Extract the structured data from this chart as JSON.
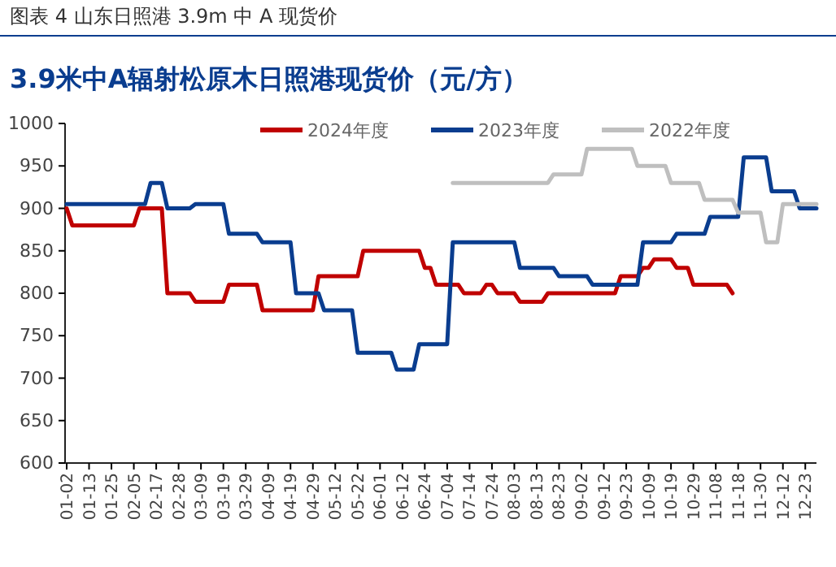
{
  "chart_data": {
    "type": "line",
    "title": "图表 4  山东日照港 3.9m 中 A 现货价",
    "subtitle": "3.9米中A辐射松原木日照港现货价（元/方）",
    "categories": [
      "01-02",
      null,
      null,
      null,
      "01-13",
      null,
      null,
      null,
      "01-25",
      null,
      null,
      null,
      "02-05",
      null,
      null,
      null,
      "02-17",
      null,
      null,
      null,
      "02-28",
      null,
      null,
      null,
      "03-09",
      null,
      null,
      null,
      "03-19",
      null,
      null,
      null,
      "03-29",
      null,
      null,
      null,
      "04-09",
      null,
      null,
      null,
      "04-19",
      null,
      null,
      null,
      "04-29",
      null,
      null,
      null,
      "05-12",
      null,
      null,
      null,
      "05-22",
      null,
      null,
      null,
      "06-01",
      null,
      null,
      null,
      "06-12",
      null,
      null,
      null,
      "06-24",
      null,
      null,
      null,
      "07-04",
      null,
      null,
      null,
      "07-14",
      null,
      null,
      null,
      "07-24",
      null,
      null,
      null,
      "08-03",
      null,
      null,
      null,
      "08-13",
      null,
      null,
      null,
      "08-23",
      null,
      null,
      null,
      "09-02",
      null,
      null,
      null,
      "09-12",
      null,
      null,
      null,
      "09-23",
      null,
      null,
      null,
      "10-09",
      null,
      null,
      null,
      "10-19",
      null,
      null,
      null,
      "10-29",
      null,
      null,
      null,
      "11-08",
      null,
      null,
      null,
      "11-18",
      null,
      null,
      null,
      "11-30",
      null,
      null,
      null,
      "12-12",
      null,
      null,
      null,
      "12-23",
      null,
      null
    ],
    "series": [
      {
        "name": "2024年度",
        "color": "#c00000",
        "values": [
          900,
          880,
          880,
          880,
          880,
          880,
          880,
          880,
          880,
          880,
          880,
          880,
          880,
          900,
          900,
          900,
          900,
          900,
          800,
          800,
          800,
          800,
          800,
          790,
          790,
          790,
          790,
          790,
          790,
          810,
          810,
          810,
          810,
          810,
          810,
          780,
          780,
          780,
          780,
          780,
          780,
          780,
          780,
          780,
          780,
          820,
          820,
          820,
          820,
          820,
          820,
          820,
          820,
          850,
          850,
          850,
          850,
          850,
          850,
          850,
          850,
          850,
          850,
          850,
          830,
          830,
          810,
          810,
          810,
          810,
          810,
          800,
          800,
          800,
          800,
          810,
          810,
          800,
          800,
          800,
          800,
          790,
          790,
          790,
          790,
          790,
          800,
          800,
          800,
          800,
          800,
          800,
          800,
          800,
          800,
          800,
          800,
          800,
          800,
          820,
          820,
          820,
          820,
          830,
          830,
          840,
          840,
          840,
          840,
          830,
          830,
          830,
          810,
          810,
          810,
          810,
          810,
          810,
          810,
          800,
          null,
          null,
          null,
          null,
          null,
          null,
          null,
          null,
          null,
          null,
          null,
          null,
          null,
          null,
          null
        ]
      },
      {
        "name": "2023年度",
        "color": "#0a3d8f",
        "values": [
          905,
          905,
          905,
          905,
          905,
          905,
          905,
          905,
          905,
          905,
          905,
          905,
          905,
          905,
          905,
          930,
          930,
          930,
          900,
          900,
          900,
          900,
          900,
          905,
          905,
          905,
          905,
          905,
          905,
          870,
          870,
          870,
          870,
          870,
          870,
          860,
          860,
          860,
          860,
          860,
          860,
          800,
          800,
          800,
          800,
          800,
          780,
          780,
          780,
          780,
          780,
          780,
          730,
          730,
          730,
          730,
          730,
          730,
          730,
          710,
          710,
          710,
          710,
          740,
          740,
          740,
          740,
          740,
          740,
          860,
          860,
          860,
          860,
          860,
          860,
          860,
          860,
          860,
          860,
          860,
          860,
          830,
          830,
          830,
          830,
          830,
          830,
          830,
          820,
          820,
          820,
          820,
          820,
          820,
          810,
          810,
          810,
          810,
          810,
          810,
          810,
          810,
          810,
          860,
          860,
          860,
          860,
          860,
          860,
          870,
          870,
          870,
          870,
          870,
          870,
          890,
          890,
          890,
          890,
          890,
          890,
          960,
          960,
          960,
          960,
          960,
          920,
          920,
          920,
          920,
          920,
          900,
          900,
          900,
          900
        ]
      },
      {
        "name": "2022年度",
        "color": "#bfbfbf",
        "values": [
          null,
          null,
          null,
          null,
          null,
          null,
          null,
          null,
          null,
          null,
          null,
          null,
          null,
          null,
          null,
          null,
          null,
          null,
          null,
          null,
          null,
          null,
          null,
          null,
          null,
          null,
          null,
          null,
          null,
          null,
          null,
          null,
          null,
          null,
          null,
          null,
          null,
          null,
          null,
          null,
          null,
          null,
          null,
          null,
          null,
          null,
          null,
          null,
          null,
          null,
          null,
          null,
          null,
          null,
          null,
          null,
          null,
          null,
          null,
          null,
          null,
          null,
          null,
          null,
          null,
          null,
          null,
          null,
          null,
          930,
          930,
          930,
          930,
          930,
          930,
          930,
          930,
          930,
          930,
          930,
          930,
          930,
          930,
          930,
          930,
          930,
          930,
          940,
          940,
          940,
          940,
          940,
          940,
          970,
          970,
          970,
          970,
          970,
          970,
          970,
          970,
          970,
          950,
          950,
          950,
          950,
          950,
          950,
          930,
          930,
          930,
          930,
          930,
          930,
          910,
          910,
          910,
          910,
          910,
          910,
          895,
          895,
          895,
          895,
          895,
          860,
          860,
          860,
          905,
          905,
          905,
          905,
          905,
          905,
          905
        ]
      }
    ],
    "ylim": [
      600,
      1000
    ],
    "yticks": [
      600,
      650,
      700,
      750,
      800,
      850,
      900,
      950,
      1000
    ],
    "legend": "top",
    "grid": false
  }
}
